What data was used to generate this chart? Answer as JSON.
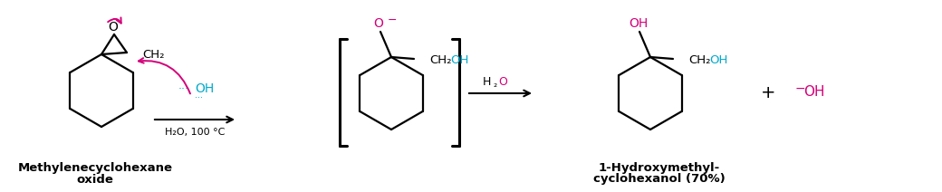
{
  "bg_color": "#ffffff",
  "pink_color": "#d4007a",
  "cyan_color": "#00aacc",
  "black_color": "#000000",
  "label1_line1": "Methylenecyclohexane",
  "label1_line2": "oxide",
  "label2_line1": "1-Hydroxymethyl-",
  "label2_line2": "cyclohexanol (70%)",
  "figsize": [
    10.4,
    2.12
  ],
  "dpi": 100
}
